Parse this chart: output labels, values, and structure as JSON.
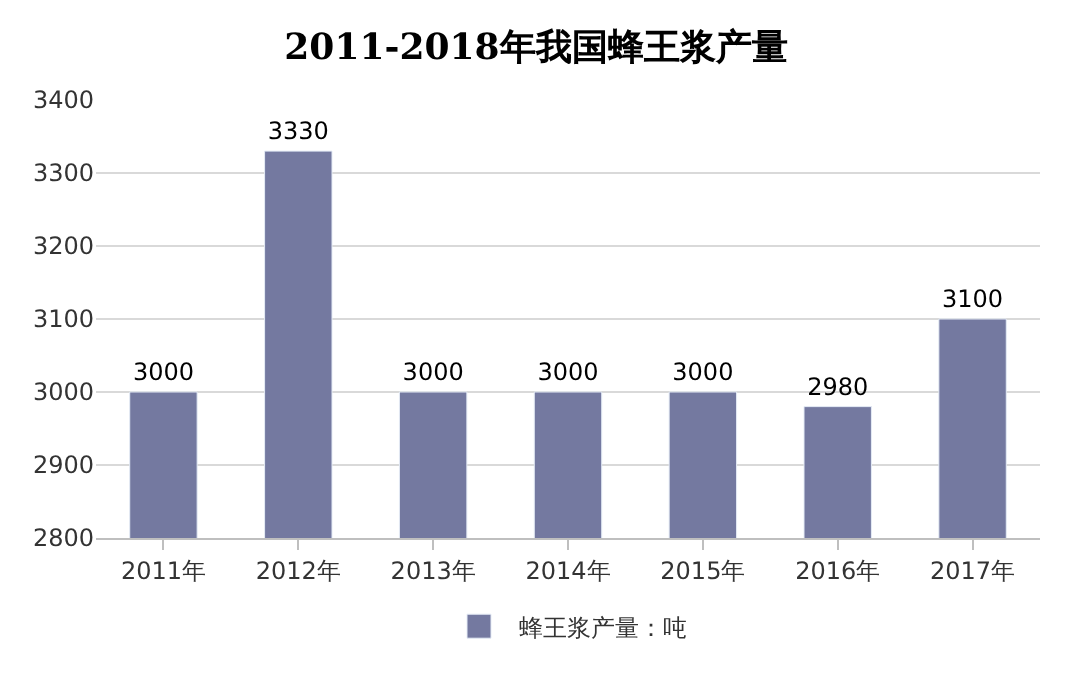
{
  "chart_data": {
    "type": "bar",
    "title": "2011-2018年我国蜂王浆产量",
    "categories": [
      "2011年",
      "2012年",
      "2013年",
      "2014年",
      "2015年",
      "2016年",
      "2017年"
    ],
    "series": [
      {
        "name": "蜂王浆产量：吨",
        "color": "#7479a0",
        "values": [
          3000,
          3330,
          3000,
          3000,
          3000,
          2980,
          3100
        ]
      }
    ],
    "ylim": [
      2800,
      3400
    ],
    "yticks": [
      2800,
      2900,
      3000,
      3100,
      3200,
      3300,
      3400
    ],
    "grid": "y",
    "legend": "bottom",
    "data_labels": true
  }
}
